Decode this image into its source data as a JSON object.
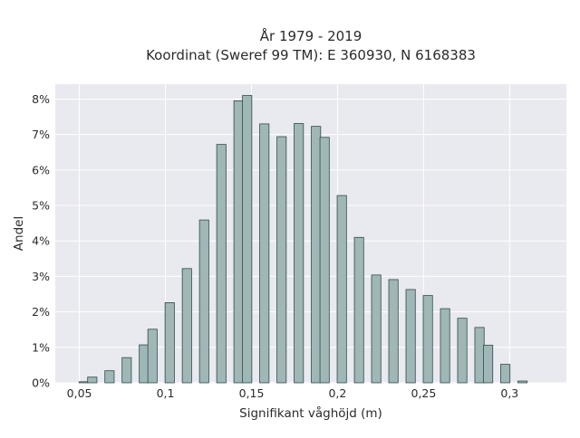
{
  "chart_data": {
    "type": "bar",
    "title_lines": [
      "År 1979 - 2019",
      "Koordinat (Sweref 99 TM): E 360930, N 6168383"
    ],
    "xlabel": "Signifikant våghöjd (m)",
    "ylabel": "Andel",
    "xlim": [
      0.036,
      0.333
    ],
    "ylim": [
      0,
      0.0842
    ],
    "x_ticks": [
      0.05,
      0.1,
      0.15,
      0.2,
      0.25,
      0.3
    ],
    "x_tick_labels": [
      "0,05",
      "0,1",
      "0,15",
      "0,2",
      "0,25",
      "0,3"
    ],
    "y_ticks": [
      0,
      0.01,
      0.02,
      0.03,
      0.04,
      0.05,
      0.06,
      0.07,
      0.08
    ],
    "y_tick_labels": [
      "0%",
      "1%",
      "2%",
      "3%",
      "4%",
      "5%",
      "6%",
      "7%",
      "8%"
    ],
    "bar_width": 0.0054,
    "grid": true,
    "colors": {
      "bar_fill": "#9fb7b7",
      "bar_edge": "#2f4a4a",
      "plot_bg": "#e9e9f0"
    },
    "x": [
      0.0525,
      0.0575,
      0.0675,
      0.0775,
      0.0875,
      0.0925,
      0.1025,
      0.1125,
      0.1225,
      0.1325,
      0.1425,
      0.1475,
      0.1575,
      0.1675,
      0.1775,
      0.1875,
      0.1925,
      0.2025,
      0.2125,
      0.2225,
      0.2325,
      0.2425,
      0.2525,
      0.2625,
      0.2725,
      0.2825,
      0.2875,
      0.2975,
      0.3075,
      0.3175,
      0.3225
    ],
    "values": [
      0.0003,
      0.0016,
      0.0034,
      0.0071,
      0.0107,
      0.0151,
      0.0226,
      0.0322,
      0.0459,
      0.0672,
      0.0795,
      0.081,
      0.073,
      0.0694,
      0.0731,
      0.0723,
      0.0692,
      0.0528,
      0.041,
      0.0304,
      0.0291,
      0.0263,
      0.0246,
      0.0209,
      0.0182,
      0.0156,
      0.0106,
      0.0052,
      0.0005,
      0,
      0
    ]
  }
}
